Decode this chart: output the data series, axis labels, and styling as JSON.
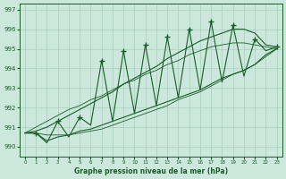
{
  "title": "Graphe pression niveau de la mer (hPa)",
  "ylabel_values": [
    990,
    991,
    992,
    993,
    994,
    995,
    996,
    997
  ],
  "ylim": [
    989.5,
    997.3
  ],
  "xlim": [
    -0.5,
    23.5
  ],
  "xticks": [
    0,
    1,
    2,
    3,
    4,
    5,
    6,
    7,
    8,
    9,
    10,
    11,
    12,
    13,
    14,
    15,
    16,
    17,
    18,
    19,
    20,
    21,
    22,
    23
  ],
  "background_color": "#cce8dc",
  "grid_color": "#aacfbf",
  "line_color": "#1a5c2a",
  "hours": [
    0,
    1,
    2,
    3,
    4,
    5,
    6,
    7,
    8,
    9,
    10,
    11,
    12,
    13,
    14,
    15,
    16,
    17,
    18,
    19,
    20,
    21,
    22,
    23
  ],
  "zigzag": [
    990.7,
    990.7,
    990.2,
    991.3,
    990.5,
    991.5,
    991.1,
    994.4,
    991.3,
    994.9,
    991.7,
    995.2,
    992.1,
    995.6,
    992.5,
    996.0,
    992.9,
    996.4,
    993.3,
    996.2,
    993.6,
    995.5,
    994.9,
    995.1
  ],
  "envelope_upper": [
    990.7,
    990.8,
    991.0,
    991.3,
    991.6,
    991.9,
    992.2,
    992.5,
    992.8,
    993.2,
    993.5,
    993.8,
    994.1,
    994.5,
    994.8,
    995.1,
    995.4,
    995.6,
    995.8,
    996.0,
    996.0,
    995.8,
    995.2,
    995.1
  ],
  "envelope_lower": [
    990.7,
    990.7,
    990.3,
    990.5,
    990.6,
    990.8,
    990.9,
    991.1,
    991.3,
    991.5,
    991.7,
    991.9,
    992.1,
    992.3,
    992.5,
    992.7,
    992.9,
    993.2,
    993.5,
    993.7,
    993.9,
    994.2,
    994.7,
    995.0
  ],
  "line_straight_upper": [
    990.7,
    991.0,
    991.3,
    991.6,
    991.9,
    992.1,
    992.4,
    992.6,
    992.9,
    993.2,
    993.4,
    993.7,
    993.9,
    994.2,
    994.4,
    994.7,
    994.9,
    995.1,
    995.2,
    995.3,
    995.3,
    995.2,
    995.1,
    995.0
  ],
  "line_straight_lower": [
    990.7,
    990.7,
    990.6,
    990.6,
    990.6,
    990.7,
    990.8,
    990.9,
    991.1,
    991.3,
    991.5,
    991.7,
    991.9,
    992.1,
    992.4,
    992.6,
    992.8,
    993.1,
    993.4,
    993.7,
    993.9,
    994.2,
    994.6,
    995.0
  ]
}
